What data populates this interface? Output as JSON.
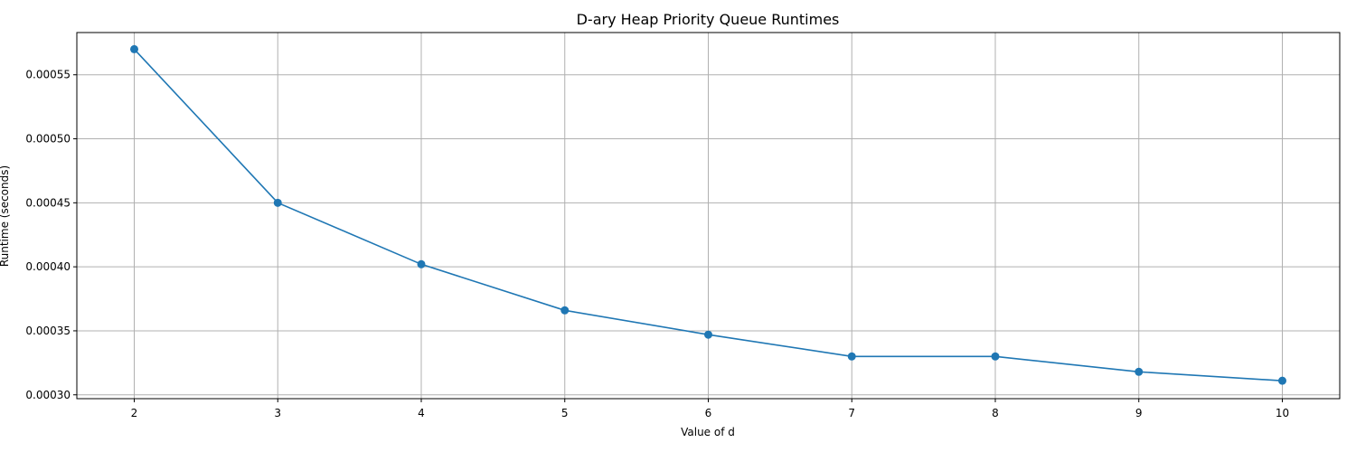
{
  "chart_data": {
    "type": "line",
    "title": "D-ary Heap Priority Queue Runtimes",
    "xlabel": "Value of d",
    "ylabel": "Runtime (seconds)",
    "x": [
      2,
      3,
      4,
      5,
      6,
      7,
      8,
      9,
      10
    ],
    "series": [
      {
        "values": [
          0.00057,
          0.00045,
          0.000402,
          0.000366,
          0.000347,
          0.00033,
          0.00033,
          0.000318,
          0.000311
        ],
        "color": "#1f77b4",
        "marker": "circle"
      }
    ],
    "xticks": [
      "2",
      "3",
      "4",
      "5",
      "6",
      "7",
      "8",
      "9",
      "10"
    ],
    "xtick_values": [
      2,
      3,
      4,
      5,
      6,
      7,
      8,
      9,
      10
    ],
    "yticks": [
      "0.00030",
      "0.00035",
      "0.00040",
      "0.00045",
      "0.00050",
      "0.00055"
    ],
    "ytick_values": [
      0.0003,
      0.00035,
      0.0004,
      0.00045,
      0.0005,
      0.00055
    ],
    "xlim": [
      1.6,
      10.4
    ],
    "ylim": [
      0.000297,
      0.000583
    ],
    "grid": true,
    "grid_color": "#b0b0b0",
    "axis_color": "#000000"
  }
}
